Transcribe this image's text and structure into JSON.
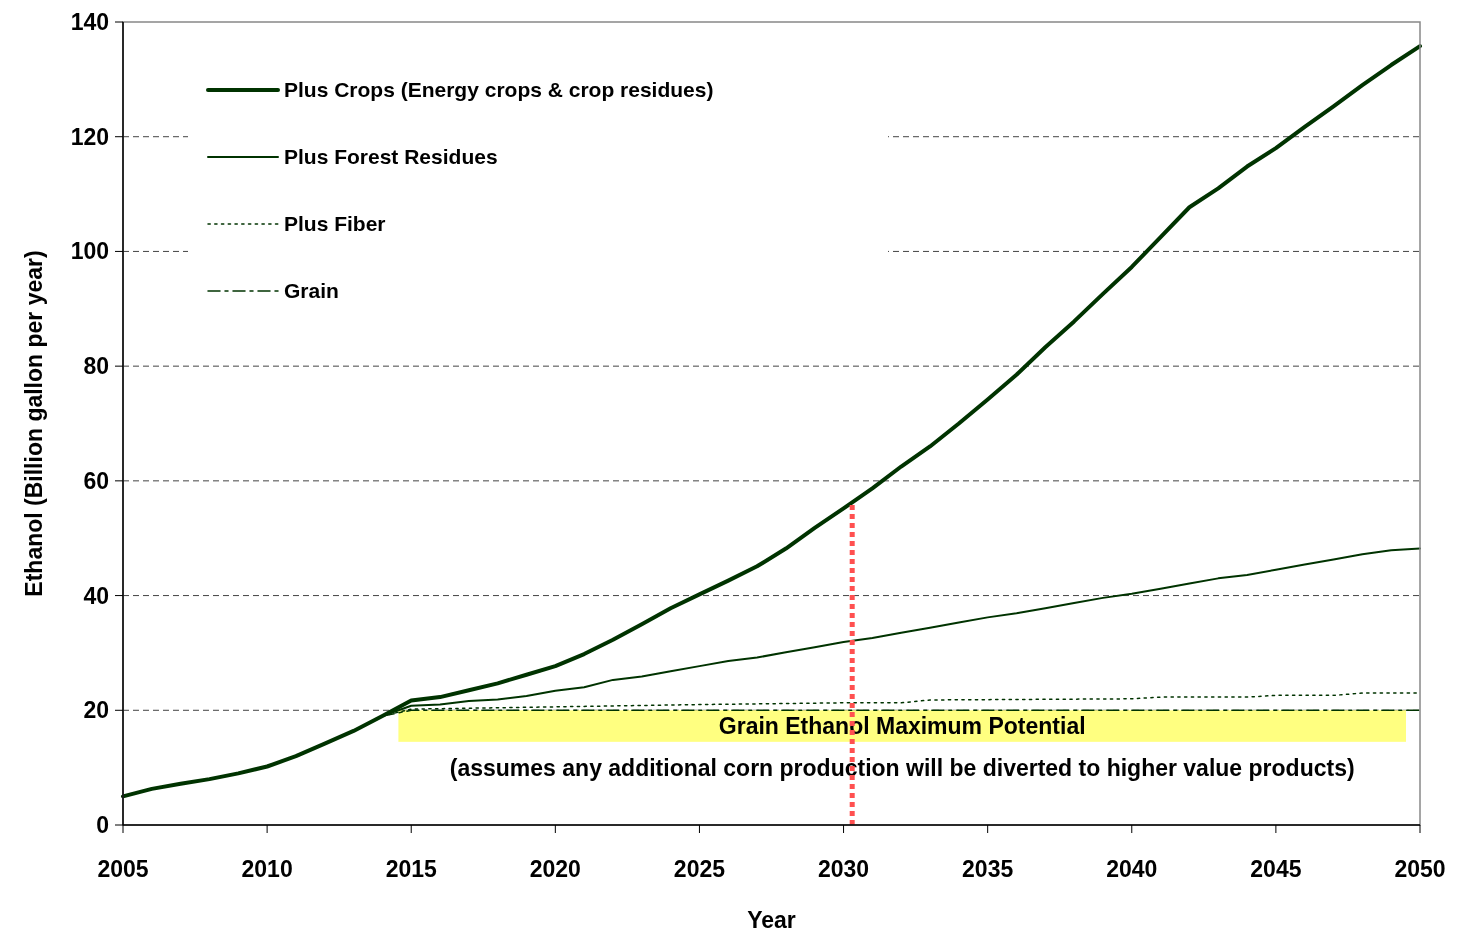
{
  "chart_data": {
    "type": "line",
    "xlabel": "Year",
    "ylabel": "Ethanol (Billion gallon per year)",
    "xlim": [
      2005,
      2050
    ],
    "xticks": [
      2005,
      2010,
      2015,
      2020,
      2025,
      2030,
      2035,
      2040,
      2045,
      2050
    ],
    "ylim": [
      0,
      140
    ],
    "yticks": [
      0,
      20,
      40,
      60,
      80,
      100,
      120,
      140
    ],
    "grid": "y",
    "legend": "top left",
    "series": [
      {
        "name": "Plus Crops (Energy crops & crop residues)",
        "color": "#003300",
        "line_style": "solid",
        "x": [
          2005,
          2006,
          2007,
          2008,
          2009,
          2010,
          2011,
          2012,
          2013,
          2014,
          2015,
          2016,
          2017,
          2018,
          2019,
          2020,
          2021,
          2022,
          2023,
          2024,
          2025,
          2026,
          2027,
          2028,
          2029,
          2030,
          2031,
          2032,
          2033,
          2034,
          2035,
          2036,
          2037,
          2038,
          2039,
          2040,
          2041,
          2042,
          2043,
          2044,
          2045,
          2046,
          2047,
          2048,
          2049,
          2050
        ],
        "values": [
          5,
          6.3,
          7.2,
          8,
          9,
          10.2,
          12,
          14.2,
          16.4,
          19,
          21.7,
          22.3,
          23.5,
          24.7,
          26.2,
          27.7,
          29.8,
          32.3,
          35,
          37.8,
          40.2,
          42.6,
          45.1,
          48.2,
          51.8,
          55.2,
          58.7,
          62.5,
          66,
          70,
          74.2,
          78.5,
          83.3,
          87.8,
          92.6,
          97.3,
          102.5,
          107.7,
          111,
          114.8,
          118,
          121.7,
          125.3,
          129,
          132.5,
          135.8
        ]
      },
      {
        "name": "Plus Forest Residues",
        "color": "#003300",
        "line_style": "solid",
        "x": [
          2014,
          2015,
          2016,
          2017,
          2018,
          2019,
          2020,
          2021,
          2022,
          2023,
          2024,
          2025,
          2026,
          2027,
          2028,
          2029,
          2030,
          2031,
          2032,
          2033,
          2034,
          2035,
          2036,
          2037,
          2038,
          2039,
          2040,
          2041,
          2042,
          2043,
          2044,
          2045,
          2046,
          2047,
          2048,
          2049,
          2050
        ],
        "values": [
          19,
          20.8,
          21,
          21.6,
          21.9,
          22.5,
          23.4,
          24,
          25.3,
          25.9,
          26.8,
          27.7,
          28.6,
          29.2,
          30.1,
          31,
          31.9,
          32.6,
          33.5,
          34.4,
          35.3,
          36.2,
          36.9,
          37.8,
          38.7,
          39.6,
          40.3,
          41.2,
          42.1,
          43,
          43.6,
          44.5,
          45.4,
          46.3,
          47.2,
          47.9,
          48.2
        ]
      },
      {
        "name": "Plus Fiber",
        "color": "#003300",
        "line_style": "dotted",
        "x": [
          2014,
          2015,
          2020,
          2025,
          2030,
          2032,
          2033,
          2040,
          2041,
          2044,
          2045,
          2047,
          2048,
          2050
        ],
        "values": [
          19,
          20.2,
          20.6,
          21,
          21.3,
          21.3,
          21.8,
          22,
          22.3,
          22.3,
          22.6,
          22.6,
          23,
          23
        ]
      },
      {
        "name": "Grain",
        "color": "#003300",
        "line_style": "dashed",
        "x": [
          2014,
          2015,
          2050
        ],
        "values": [
          19,
          20,
          20
        ]
      }
    ],
    "bands": [
      {
        "axis": "y",
        "from": 14.5,
        "to": 20,
        "label": "Grain Ethanol Maximum Potential",
        "color": "#ffff80"
      }
    ],
    "ref_lines": [
      {
        "axis": "x",
        "value": 2030.3,
        "color": "#ff5050",
        "line_style": "dotted"
      }
    ],
    "annotations": [
      "(assumes any additional corn production will be diverted to higher value products)"
    ]
  }
}
